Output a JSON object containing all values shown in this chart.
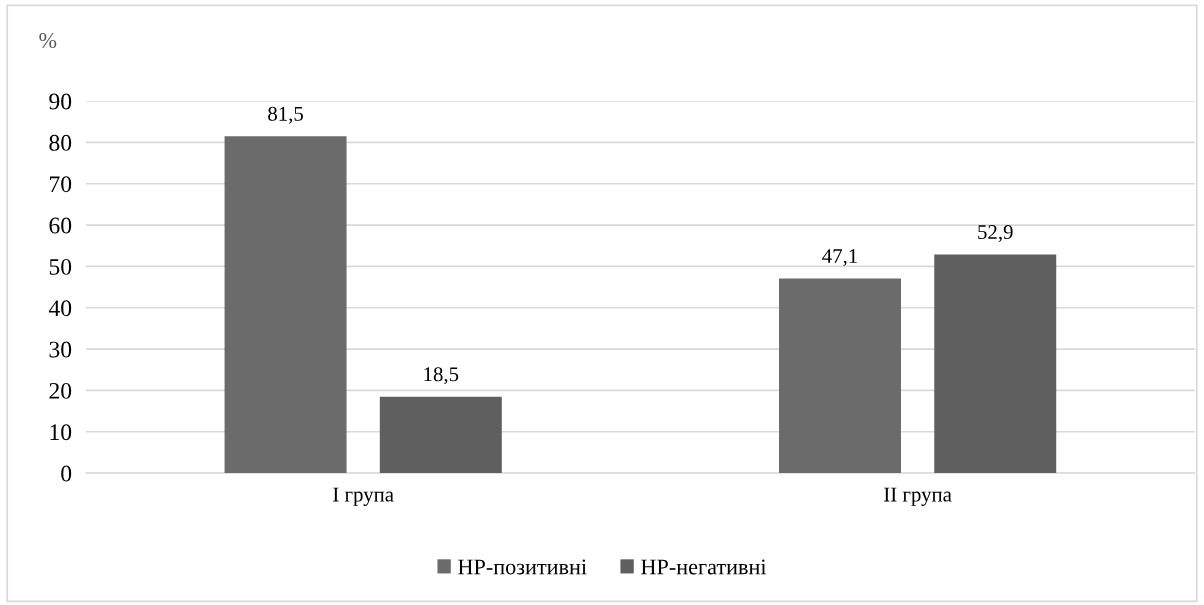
{
  "chart_data": {
    "type": "bar",
    "ylabel": "%",
    "categories": [
      "I група",
      "II група"
    ],
    "series": [
      {
        "name": "HP-позитивні",
        "color": "#6b6b6b",
        "values": [
          81.5,
          47.1
        ],
        "value_labels": [
          "81,5",
          "47,1"
        ]
      },
      {
        "name": "HP-негативні",
        "color": "#5f5f5f",
        "values": [
          18.5,
          52.9
        ],
        "value_labels": [
          "18,5",
          "52,9"
        ]
      }
    ],
    "ylim": [
      0,
      90
    ],
    "yticks": [
      0,
      10,
      20,
      30,
      40,
      50,
      60,
      70,
      80,
      90
    ],
    "grid": "y",
    "legend": "bottom"
  }
}
